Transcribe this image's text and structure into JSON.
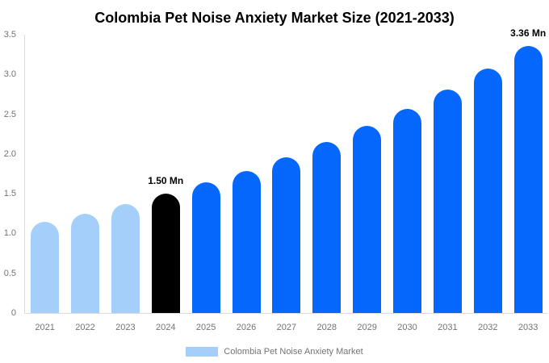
{
  "colors": {
    "historical": "#A3CFFA",
    "base_year": "#000000",
    "forecast": "#0667FD",
    "axis_line": "#DBDBDB",
    "tick_text": "#737373",
    "annotation_text": "#000000",
    "title_text": "#000000",
    "background": "#FFFFFF"
  },
  "chart_data": {
    "type": "bar",
    "title": "Colombia Pet Noise Anxiety Market Size (2021-2033)",
    "xlabel": "",
    "ylabel": "",
    "unit": "Mn",
    "categories": [
      "2021",
      "2022",
      "2023",
      "2024",
      "2025",
      "2026",
      "2027",
      "2028",
      "2029",
      "2030",
      "2031",
      "2032",
      "2033"
    ],
    "values": [
      1.15,
      1.25,
      1.37,
      1.5,
      1.64,
      1.79,
      1.96,
      2.15,
      2.35,
      2.57,
      2.81,
      3.07,
      3.36
    ],
    "bar_roles": [
      "historical",
      "historical",
      "historical",
      "base_year",
      "forecast",
      "forecast",
      "forecast",
      "forecast",
      "forecast",
      "forecast",
      "forecast",
      "forecast",
      "forecast"
    ],
    "annotations": [
      {
        "category": "2024",
        "text": "1.50 Mn"
      },
      {
        "category": "2033",
        "text": "3.36 Mn"
      }
    ],
    "ylim": [
      0,
      3.5
    ],
    "yticks": [
      0,
      0.5,
      1.0,
      1.5,
      2.0,
      2.5,
      3.0,
      3.5
    ],
    "ytick_labels": [
      "0",
      "0.5",
      "1.0",
      "1.5",
      "2.0",
      "2.5",
      "3.0",
      "3.5"
    ],
    "grid": false,
    "legend": {
      "position": "bottom",
      "entries": [
        {
          "label": "Colombia Pet Noise Anxiety Market",
          "color_role": "historical"
        }
      ]
    }
  }
}
